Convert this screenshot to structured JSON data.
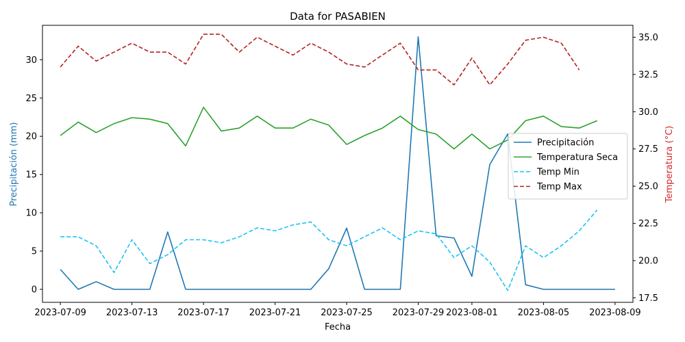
{
  "chart_data": {
    "type": "line",
    "title": "Data for PASABIEN",
    "xlabel": "Fecha",
    "ylabel_left": "Precipitación (mm)",
    "ylabel_right": "Temperatura (°C)",
    "left_color": "#1f77b4",
    "right_color": "#d62728",
    "x_start": "2023-07-09",
    "x_ticks": [
      "2023-07-09",
      "2023-07-13",
      "2023-07-17",
      "2023-07-21",
      "2023-07-25",
      "2023-07-29",
      "2023-08-01",
      "2023-08-05",
      "2023-08-09"
    ],
    "xlim": [
      "2023-07-08",
      "2023-08-10"
    ],
    "ylim_left": [
      -1.7,
      34.5
    ],
    "yticks_left": [
      0,
      5,
      10,
      15,
      20,
      25,
      30
    ],
    "ylim_right": [
      17.2,
      35.8
    ],
    "yticks_right": [
      "17.5",
      "20.0",
      "22.5",
      "25.0",
      "27.5",
      "30.0",
      "32.5",
      "35.0"
    ],
    "grid": false,
    "legend_position": "center-right",
    "series": [
      {
        "name": "Precipitación",
        "axis": "left",
        "color": "#1f77b4",
        "dash": "solid",
        "values": [
          2.6,
          0,
          1.0,
          0,
          0,
          0,
          7.5,
          0,
          0,
          0,
          0,
          0,
          0,
          0,
          0,
          2.7,
          8.0,
          0,
          0,
          0,
          33.0,
          7.0,
          6.7,
          1.7,
          16.3,
          20.3,
          0.6,
          0,
          0,
          0,
          0,
          0
        ]
      },
      {
        "name": "Temperatura Seca",
        "axis": "right",
        "color": "#2ca02c",
        "dash": "solid",
        "values": [
          28.4,
          29.3,
          28.6,
          29.2,
          29.6,
          29.5,
          29.2,
          27.7,
          30.3,
          28.7,
          28.9,
          29.7,
          28.9,
          28.9,
          29.5,
          29.1,
          27.8,
          28.4,
          28.9,
          29.7,
          28.8,
          28.5,
          27.5,
          28.5,
          27.5,
          28.1,
          29.4,
          29.7,
          29.0,
          28.9,
          29.4
        ]
      },
      {
        "name": "Temp Min",
        "axis": "right",
        "color": "#1ac3f5",
        "dash": "dashed",
        "values": [
          21.6,
          21.6,
          21.0,
          19.2,
          21.4,
          19.8,
          20.4,
          21.4,
          21.4,
          21.2,
          21.6,
          22.2,
          22.0,
          22.4,
          22.6,
          21.4,
          21.0,
          21.6,
          22.2,
          21.4,
          22.0,
          21.8,
          20.2,
          21.0,
          19.9,
          18.0,
          21.0,
          20.2,
          21.0,
          22.0,
          23.4
        ]
      },
      {
        "name": "Temp Max",
        "axis": "right",
        "color": "#b22222",
        "dash": "dashed",
        "values": [
          33.0,
          34.4,
          33.4,
          34.0,
          34.6,
          34.0,
          34.0,
          33.2,
          35.2,
          35.2,
          34.0,
          35.0,
          34.4,
          33.8,
          34.6,
          34.0,
          33.2,
          33.0,
          33.8,
          34.6,
          32.8,
          32.8,
          31.8,
          33.6,
          31.8,
          33.2,
          34.8,
          35.0,
          34.6,
          32.8
        ]
      }
    ]
  }
}
